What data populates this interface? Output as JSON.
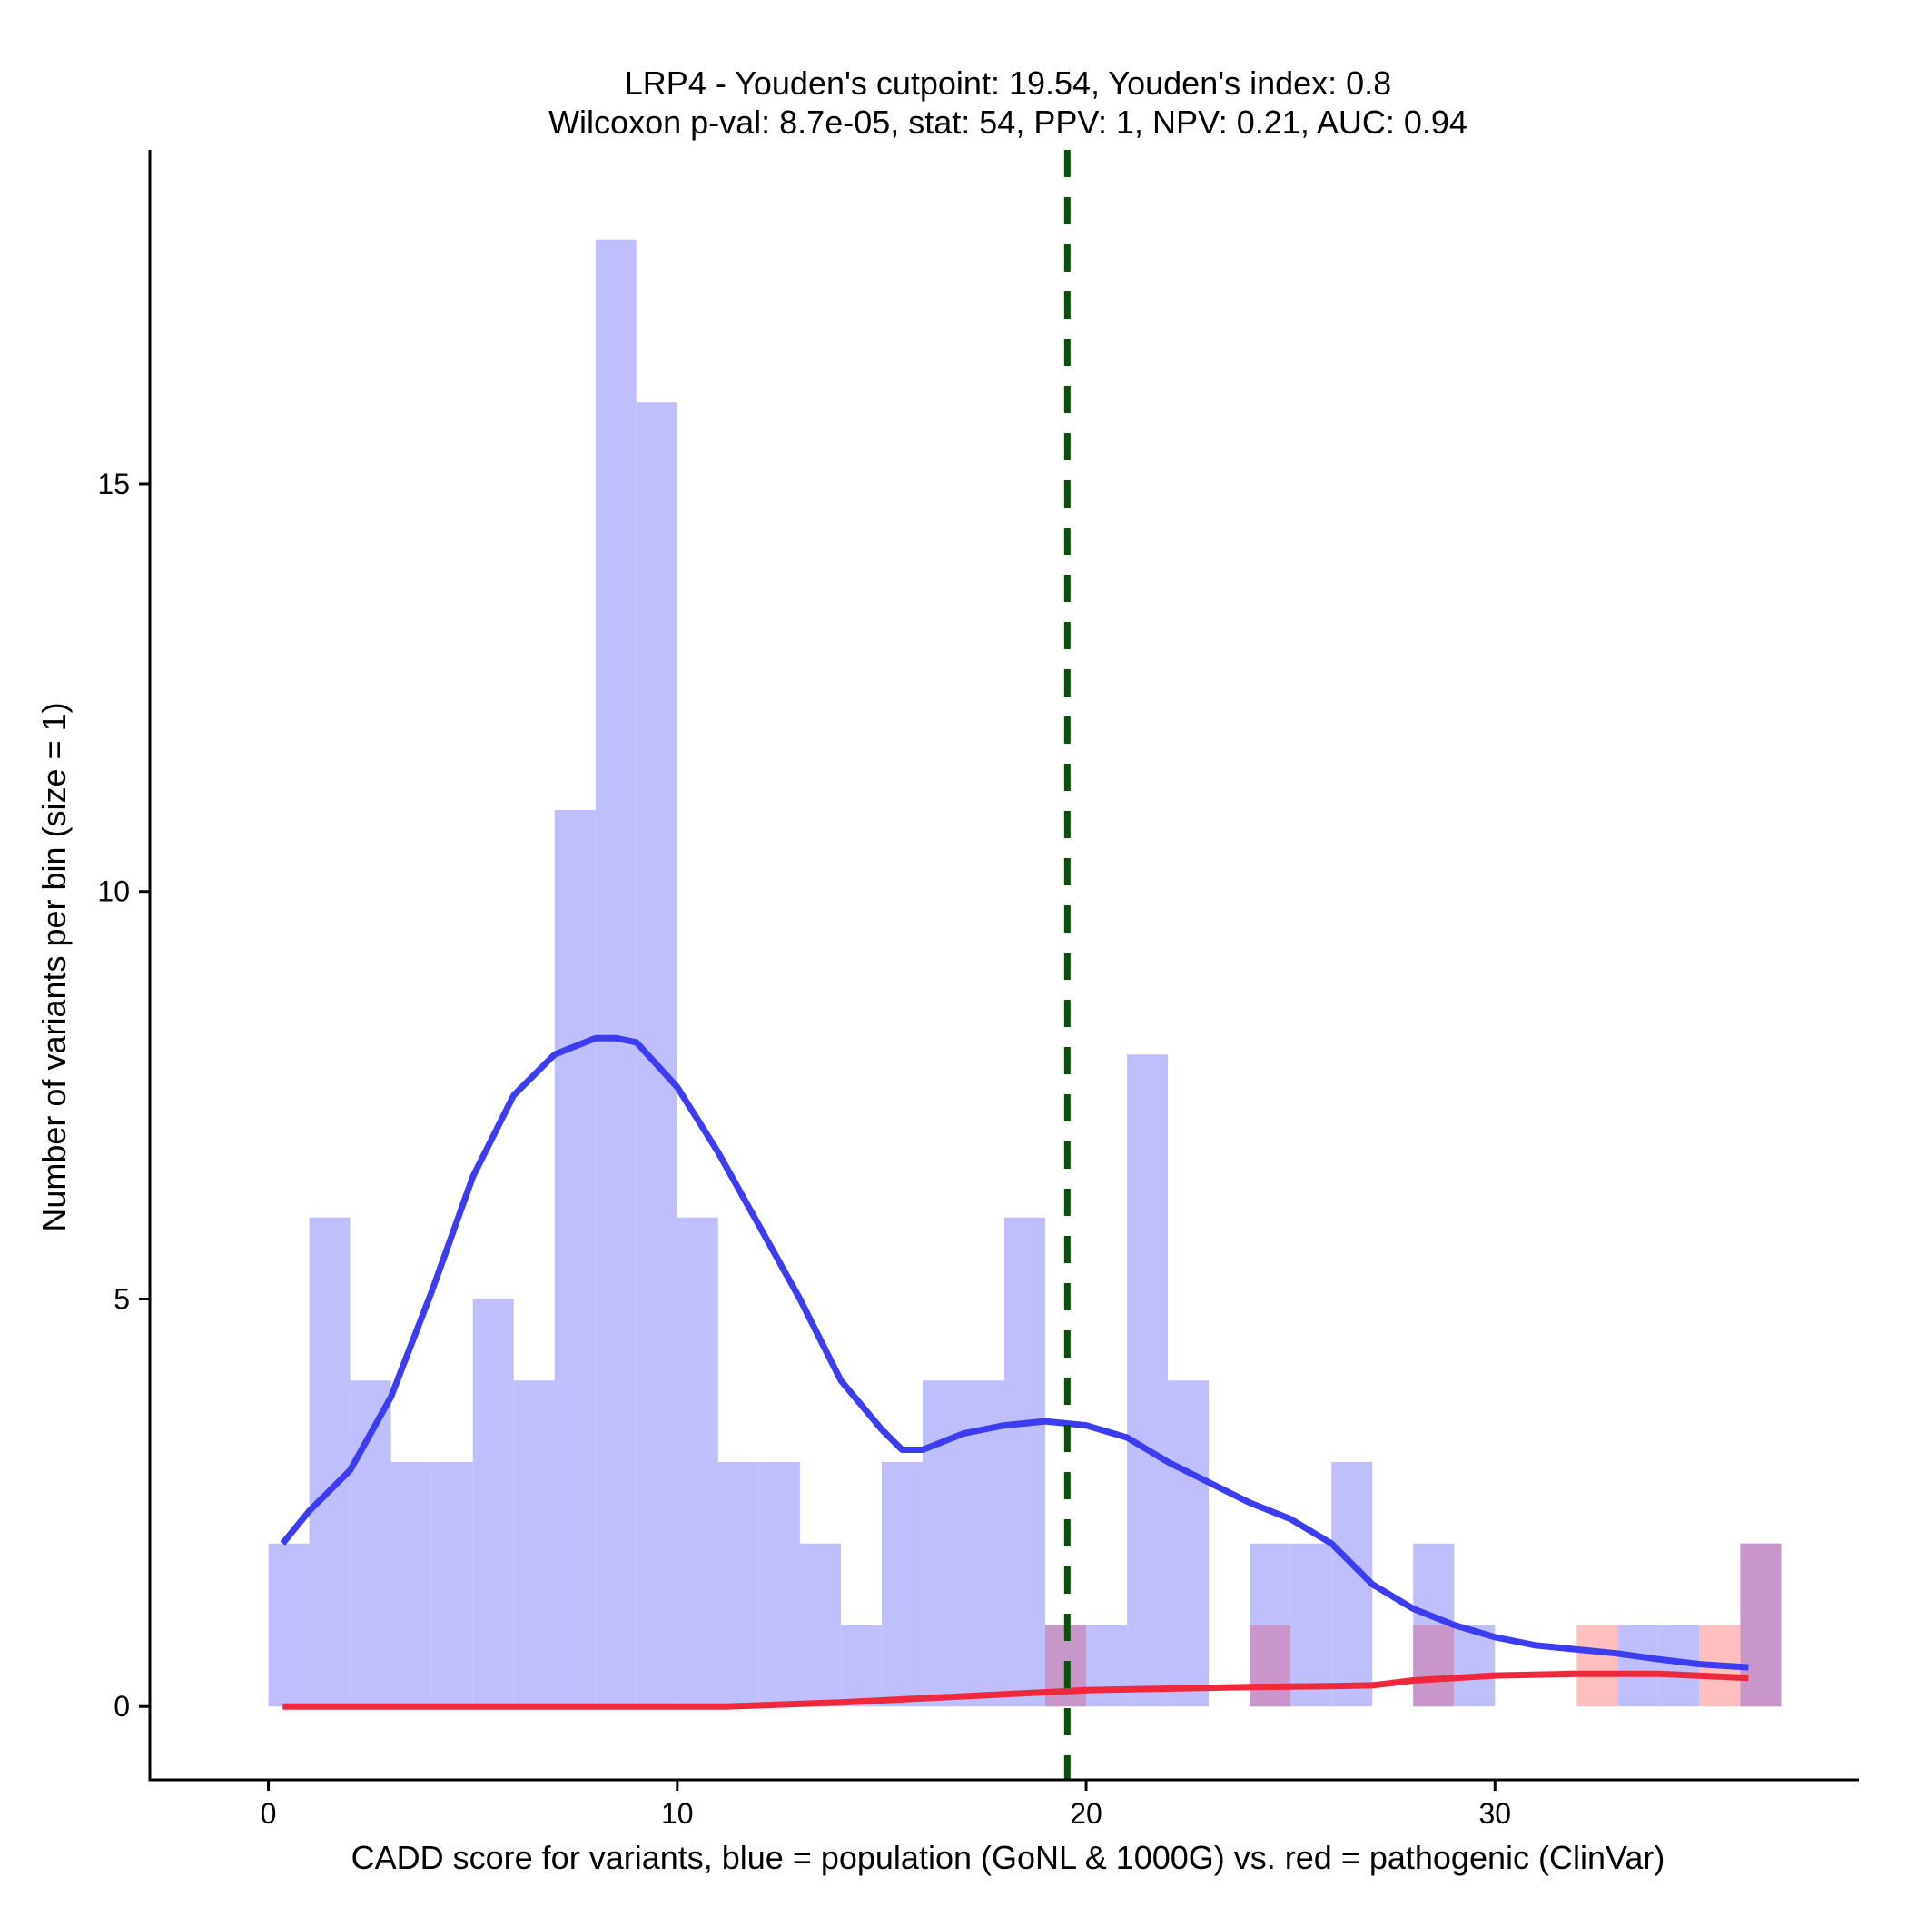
{
  "chart_data": {
    "type": "bar",
    "title_line1": "LRP4 - Youden's cutpoint: 19.54, Youden's index: 0.8",
    "title_line2": "Wilcoxon p-val: 8.7e-05, stat: 54, PPV: 1, NPV: 0.21, AUC: 0.94",
    "xlabel": "CADD score for variants, blue = population (GoNL & 1000G) vs. red = pathogenic (ClinVar)",
    "ylabel": "Number of variants per bin (size = 1)",
    "xlim": [
      -2.9,
      38.9
    ],
    "ylim": [
      -0.9,
      19.1
    ],
    "xticks": [
      0,
      10,
      20,
      30
    ],
    "yticks": [
      0,
      5,
      10,
      15
    ],
    "bin_size": 1,
    "cutpoint": 19.54,
    "colors": {
      "population": "#bfbffd",
      "pathogenic": "#ffbfbf",
      "overlap": "#c896c8",
      "population_density": "#3c3cf0",
      "pathogenic_density": "#f0283c",
      "cutpoint": "#0a500a",
      "axis": "#000000"
    },
    "series": [
      {
        "name": "population",
        "bins": [
          [
            0,
            2
          ],
          [
            1,
            6
          ],
          [
            2,
            4
          ],
          [
            3,
            3
          ],
          [
            4,
            3
          ],
          [
            5,
            5
          ],
          [
            6,
            4
          ],
          [
            7,
            11
          ],
          [
            8,
            18
          ],
          [
            9,
            16
          ],
          [
            10,
            6
          ],
          [
            11,
            3
          ],
          [
            12,
            3
          ],
          [
            13,
            2
          ],
          [
            14,
            1
          ],
          [
            15,
            3
          ],
          [
            16,
            4
          ],
          [
            17,
            4
          ],
          [
            18,
            6
          ],
          [
            19,
            1
          ],
          [
            20,
            1
          ],
          [
            21,
            8
          ],
          [
            22,
            4
          ],
          [
            24,
            2
          ],
          [
            25,
            2
          ],
          [
            26,
            3
          ],
          [
            28,
            2
          ],
          [
            29,
            1
          ],
          [
            33,
            1
          ],
          [
            34,
            1
          ],
          [
            36,
            2
          ]
        ]
      },
      {
        "name": "pathogenic",
        "bins": [
          [
            19,
            1
          ],
          [
            24,
            1
          ],
          [
            28,
            1
          ],
          [
            32,
            1
          ],
          [
            35,
            1
          ],
          [
            36,
            2
          ]
        ]
      }
    ],
    "density_curves": [
      {
        "name": "population",
        "x": [
          0.35,
          1,
          2,
          3,
          4,
          5,
          6,
          7,
          8,
          8.5,
          9,
          10,
          11,
          12,
          13,
          14,
          15,
          15.5,
          16,
          17,
          18,
          19,
          20,
          21,
          22,
          23,
          24,
          25,
          26,
          27,
          28,
          29,
          30,
          31,
          32,
          33,
          34,
          35,
          36.2
        ],
        "y": [
          2.0,
          2.4,
          2.9,
          3.8,
          5.1,
          6.5,
          7.5,
          8.0,
          8.2,
          8.2,
          8.15,
          7.6,
          6.8,
          5.9,
          5.0,
          4.0,
          3.4,
          3.15,
          3.15,
          3.35,
          3.45,
          3.5,
          3.45,
          3.3,
          3.0,
          2.75,
          2.5,
          2.3,
          2.0,
          1.5,
          1.2,
          1.0,
          0.85,
          0.75,
          0.7,
          0.65,
          0.58,
          0.52,
          0.48
        ]
      },
      {
        "name": "pathogenic",
        "x": [
          0.35,
          5,
          11.2,
          14,
          16,
          18,
          20,
          22,
          24,
          26,
          27,
          28,
          30,
          32,
          34,
          36.2
        ],
        "y": [
          0,
          0,
          0,
          0.05,
          0.1,
          0.15,
          0.2,
          0.22,
          0.24,
          0.25,
          0.26,
          0.32,
          0.38,
          0.4,
          0.4,
          0.35
        ]
      }
    ]
  }
}
